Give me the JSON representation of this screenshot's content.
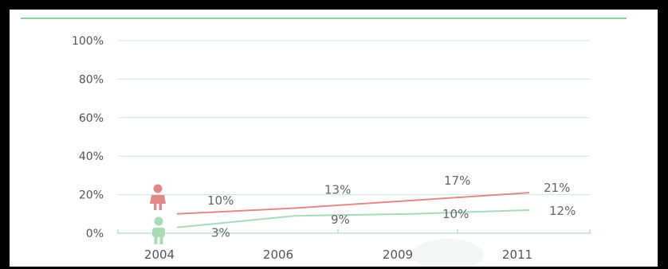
{
  "chart_data": {
    "type": "line",
    "categories": [
      "2004",
      "2006",
      "2009",
      "2011"
    ],
    "y_ticks": [
      "100%",
      "80%",
      "60%",
      "40%",
      "20%",
      "0%"
    ],
    "ylim": [
      0,
      100
    ],
    "grid": true,
    "series": [
      {
        "icon": "female-figure-icon",
        "color": "#e08a8a",
        "values": [
          10,
          13,
          17,
          21
        ],
        "labels": [
          "10%",
          "13%",
          "17%",
          "21%"
        ]
      },
      {
        "icon": "male-figure-icon",
        "color": "#a8dbb6",
        "values": [
          3,
          9,
          10,
          12
        ],
        "labels": [
          "3%",
          "9%",
          "10%",
          "12%"
        ]
      }
    ]
  },
  "colors": {
    "grid": "#cfe9d6",
    "axis": "#bfe3c8",
    "tick_text": "#555555",
    "label_text": "#666666"
  }
}
